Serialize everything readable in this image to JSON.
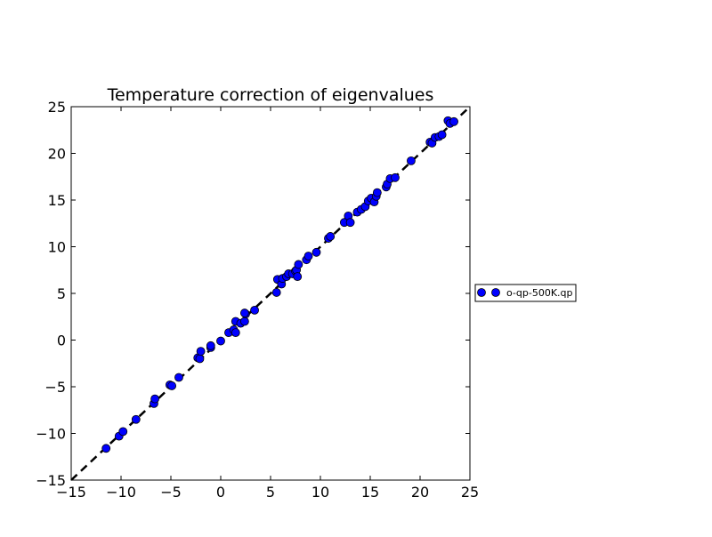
{
  "chart_data": {
    "type": "scatter",
    "title": "Temperature correction of eigenvalues",
    "xlabel": "",
    "ylabel": "",
    "xlim": [
      -15,
      25
    ],
    "ylim": [
      -15,
      25
    ],
    "xticks": [
      "−15",
      "−10",
      "−5",
      "0",
      "5",
      "10",
      "15",
      "20",
      "25"
    ],
    "yticks": [
      "−15",
      "−10",
      "−5",
      "0",
      "5",
      "10",
      "15",
      "20",
      "25"
    ],
    "grid": false,
    "legend_position": "right-outside",
    "reference_line": {
      "style": "dashed",
      "color": "#000000",
      "from": [
        -15,
        -15
      ],
      "to": [
        25,
        25
      ]
    },
    "series": [
      {
        "name": "o-qp-500K.qp",
        "marker": "circle",
        "color": "#0000ff",
        "points": [
          [
            -11.5,
            -11.6
          ],
          [
            -10.2,
            -10.3
          ],
          [
            -9.8,
            -9.8
          ],
          [
            -8.5,
            -8.5
          ],
          [
            -6.7,
            -6.8
          ],
          [
            -6.6,
            -6.3
          ],
          [
            -5.1,
            -4.8
          ],
          [
            -4.9,
            -4.9
          ],
          [
            -4.2,
            -4.0
          ],
          [
            -2.3,
            -1.9
          ],
          [
            -2.1,
            -2.0
          ],
          [
            -2.0,
            -1.2
          ],
          [
            -1.0,
            -0.8
          ],
          [
            -1.0,
            -0.6
          ],
          [
            0.0,
            -0.1
          ],
          [
            0.8,
            0.8
          ],
          [
            1.3,
            1.1
          ],
          [
            1.5,
            0.8
          ],
          [
            1.5,
            2.0
          ],
          [
            2.0,
            1.8
          ],
          [
            2.4,
            2.0
          ],
          [
            2.5,
            2.8
          ],
          [
            2.4,
            2.9
          ],
          [
            3.4,
            3.2
          ],
          [
            5.6,
            5.1
          ],
          [
            5.7,
            6.5
          ],
          [
            6.1,
            6.0
          ],
          [
            6.2,
            6.6
          ],
          [
            6.6,
            6.8
          ],
          [
            6.8,
            7.1
          ],
          [
            7.2,
            7.1
          ],
          [
            7.5,
            7.4
          ],
          [
            7.6,
            7.5
          ],
          [
            7.7,
            6.8
          ],
          [
            7.8,
            8.1
          ],
          [
            8.6,
            8.6
          ],
          [
            8.8,
            9.0
          ],
          [
            9.6,
            9.4
          ],
          [
            10.8,
            10.9
          ],
          [
            11.0,
            11.1
          ],
          [
            12.4,
            12.6
          ],
          [
            12.8,
            13.3
          ],
          [
            13.0,
            12.6
          ],
          [
            13.7,
            13.7
          ],
          [
            14.1,
            14.0
          ],
          [
            14.5,
            14.3
          ],
          [
            14.8,
            14.9
          ],
          [
            15.1,
            15.2
          ],
          [
            15.4,
            14.8
          ],
          [
            15.6,
            15.4
          ],
          [
            15.7,
            15.8
          ],
          [
            16.6,
            16.4
          ],
          [
            16.7,
            16.7
          ],
          [
            17.0,
            17.3
          ],
          [
            17.5,
            17.4
          ],
          [
            19.1,
            19.2
          ],
          [
            21.0,
            21.2
          ],
          [
            21.2,
            21.1
          ],
          [
            21.5,
            21.7
          ],
          [
            21.9,
            21.8
          ],
          [
            22.2,
            22.0
          ],
          [
            22.8,
            23.5
          ],
          [
            23.0,
            23.2
          ],
          [
            23.4,
            23.4
          ]
        ]
      }
    ]
  }
}
